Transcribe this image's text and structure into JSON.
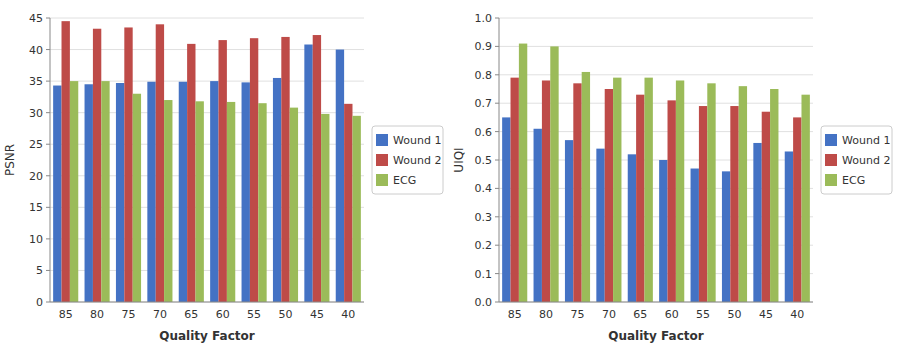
{
  "chart_data": [
    {
      "type": "bar",
      "categories": [
        "85",
        "80",
        "75",
        "70",
        "65",
        "60",
        "55",
        "50",
        "45",
        "40"
      ],
      "series": [
        {
          "name": "Wound 1",
          "color": "#4472C4",
          "values": [
            34.3,
            34.5,
            34.7,
            34.9,
            34.9,
            35.0,
            34.8,
            35.5,
            40.8,
            40.0
          ]
        },
        {
          "name": "Wound 2",
          "color": "#BE4B48",
          "values": [
            44.5,
            43.3,
            43.5,
            44.0,
            40.9,
            41.5,
            41.8,
            42.0,
            42.3,
            31.4
          ]
        },
        {
          "name": "ECG",
          "color": "#9BBB59",
          "values": [
            35.0,
            35.0,
            33.0,
            32.0,
            31.8,
            31.7,
            31.5,
            30.8,
            29.8,
            29.5
          ]
        }
      ],
      "xlabel": "Quality Factor",
      "ylabel": "PSNR",
      "ylim": [
        0,
        45
      ],
      "yticks": [
        0,
        5,
        10,
        15,
        20,
        25,
        30,
        35,
        40,
        45
      ],
      "grid": true,
      "legend": "right"
    },
    {
      "type": "bar",
      "categories": [
        "85",
        "80",
        "75",
        "70",
        "65",
        "60",
        "55",
        "50",
        "45",
        "40"
      ],
      "series": [
        {
          "name": "Wound 1",
          "color": "#4472C4",
          "values": [
            0.65,
            0.61,
            0.57,
            0.54,
            0.52,
            0.5,
            0.47,
            0.46,
            0.56,
            0.53
          ]
        },
        {
          "name": "Wound 2",
          "color": "#BE4B48",
          "values": [
            0.79,
            0.78,
            0.77,
            0.75,
            0.73,
            0.71,
            0.69,
            0.69,
            0.67,
            0.65
          ]
        },
        {
          "name": "ECG",
          "color": "#9BBB59",
          "values": [
            0.91,
            0.9,
            0.81,
            0.79,
            0.79,
            0.78,
            0.77,
            0.76,
            0.75,
            0.73
          ]
        }
      ],
      "xlabel": "Quality Factor",
      "ylabel": "UIQI",
      "ylim": [
        0,
        1.0
      ],
      "yticks": [
        {
          "value": 0,
          "label": "0.0"
        },
        0.1,
        0.2,
        0.3,
        0.4,
        0.5,
        0.6,
        0.7,
        0.8,
        0.9,
        {
          "value": 1,
          "label": "1.0"
        }
      ],
      "grid": true,
      "legend": "right"
    }
  ]
}
